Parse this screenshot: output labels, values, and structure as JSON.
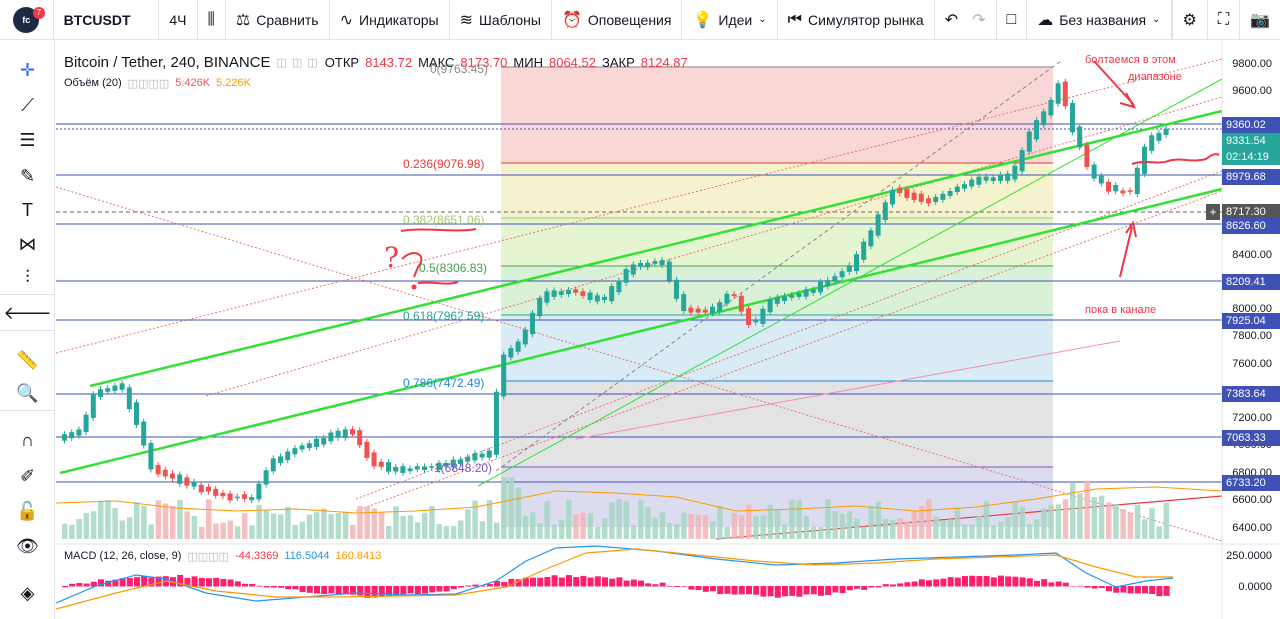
{
  "toolbar": {
    "logo": "freedman club",
    "logo_badge": "7",
    "symbol": "BTCUSDT",
    "interval": "4Ч",
    "compare": "Сравнить",
    "indicators": "Индикаторы",
    "templates": "Шаблоны",
    "alerts": "Оповещения",
    "ideas": "Идеи",
    "simulator": "Симулятор рынка",
    "layout_name": "Без названия"
  },
  "legend": {
    "title": "Bitcoin / Tether, 240, BINANCE",
    "open_label": "ОТКР",
    "open": "8143.72",
    "high_label": "МАКС",
    "high": "8173.70",
    "low_label": "МИН",
    "low": "8064.52",
    "close_label": "ЗАКР",
    "close": "8124.87",
    "volume": "Объём (20)",
    "vol1": "5.426K",
    "vol2": "5.226K",
    "macd": "MACD (12, 26, close, 9)",
    "macd1": "-44.3369",
    "macd2": "116.5044",
    "macd3": "160.8413"
  },
  "fib": {
    "f0": "0(9763.45)",
    "f236": "0.236(9076.98)",
    "f382": "0.382(8651.06)",
    "f5": "0.5(8306.83)",
    "f618": "0.618(7962.59)",
    "f786": "0.786(7472.49)",
    "f1": "1(6848.20)"
  },
  "axis": {
    "ticks": [
      "9800.00",
      "9600.00",
      "8400.00",
      "8200.00",
      "8000.00",
      "7800.00",
      "7600.00",
      "7400.00",
      "7200.00",
      "7000.00",
      "6800.00",
      "6600.00",
      "6400.00"
    ],
    "macd_ticks": [
      "250.0000",
      "0.0000"
    ]
  },
  "price_labels": {
    "l9360": "9360.02",
    "l9331": "9331.54",
    "timer": "02:14:19",
    "l8979": "8979.68",
    "l8717": "8717.30",
    "l8626": "8626.60",
    "l8209": "8209.41",
    "l7925": "7925.04",
    "l7383": "7383.64",
    "l7063": "7063.33",
    "l6733": "6733.20"
  },
  "notes": {
    "range": "болтаемся в этом",
    "range2": "диапазоне",
    "channel": "пока в канале",
    "question": "?"
  },
  "colors": {
    "up": "#26a69a",
    "down": "#ef5350",
    "channel": "#33e033",
    "accent": "#f23645"
  }
}
